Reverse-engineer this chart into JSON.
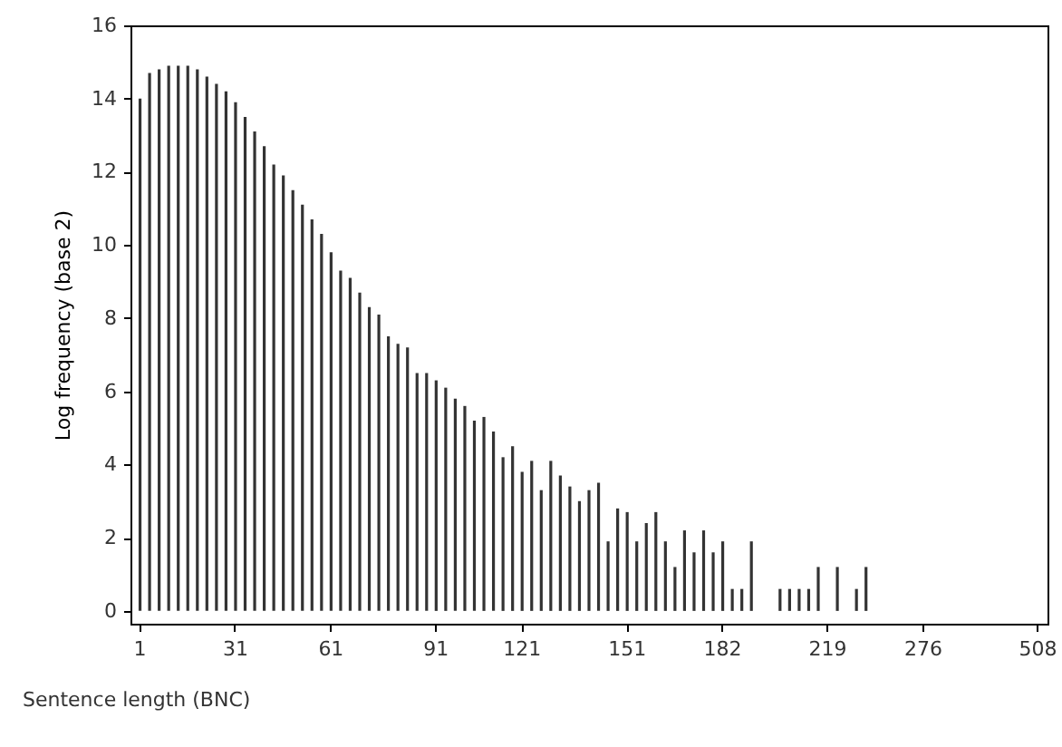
{
  "chart_data": {
    "type": "bar",
    "xlabel": "Sentence length (BNC)",
    "ylabel": "Log frequency (base 2)",
    "categories": [
      "1",
      null,
      null,
      null,
      null,
      null,
      null,
      null,
      null,
      null,
      "31",
      null,
      null,
      null,
      null,
      null,
      null,
      null,
      null,
      null,
      "61",
      null,
      null,
      null,
      null,
      null,
      null,
      null,
      null,
      null,
      null,
      "91",
      null,
      null,
      null,
      null,
      null,
      null,
      null,
      null,
      "121",
      null,
      null,
      null,
      null,
      null,
      null,
      null,
      null,
      null,
      null,
      "151",
      null,
      null,
      null,
      null,
      null,
      null,
      null,
      null,
      null,
      "182",
      null,
      null,
      null,
      null,
      null,
      null,
      null,
      null,
      null,
      null,
      "219",
      null,
      null,
      null,
      null,
      null,
      null,
      null,
      null,
      null,
      "276",
      null,
      null,
      null,
      null,
      null,
      null,
      null,
      null,
      null,
      null,
      null,
      "508"
    ],
    "series": [
      {
        "color": "#333333",
        "values": [
          14.0,
          14.7,
          14.8,
          14.9,
          14.9,
          14.9,
          14.8,
          14.6,
          14.4,
          14.2,
          13.9,
          13.5,
          13.1,
          12.7,
          12.2,
          11.9,
          11.5,
          11.1,
          10.7,
          10.3,
          9.8,
          9.3,
          9.1,
          8.7,
          8.3,
          8.1,
          7.5,
          7.3,
          7.2,
          6.5,
          6.5,
          6.3,
          6.1,
          5.8,
          5.6,
          5.2,
          5.3,
          4.9,
          4.2,
          4.5,
          3.8,
          4.1,
          3.3,
          4.1,
          3.7,
          3.4,
          3.0,
          3.3,
          3.5,
          1.9,
          2.8,
          2.7,
          1.9,
          2.4,
          2.7,
          1.9,
          1.2,
          2.2,
          1.6,
          2.2,
          1.6,
          1.9,
          0.6,
          0.6,
          1.9,
          null,
          null,
          0.6,
          0.6,
          0.6,
          0.6,
          1.2,
          null,
          1.2,
          null,
          0.6,
          1.2,
          null,
          null,
          null,
          null,
          null,
          null,
          null,
          null,
          null,
          null,
          null,
          null,
          null,
          null,
          null,
          null,
          null,
          null
        ]
      }
    ],
    "ylim": [
      -0.35,
      16
    ],
    "yticks": [
      0,
      2,
      4,
      6,
      8,
      10,
      12,
      14,
      16
    ],
    "grid": false
  }
}
